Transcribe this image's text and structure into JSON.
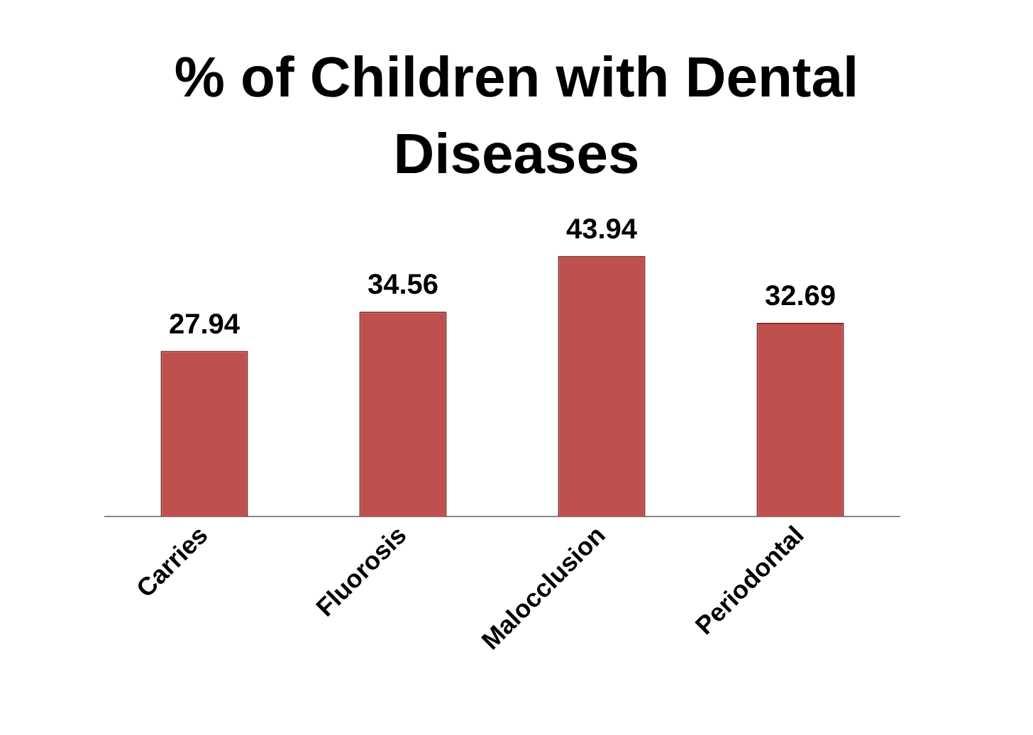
{
  "chart_data": {
    "type": "bar",
    "title": "% of Children with Dental Diseases",
    "categories": [
      "Carries",
      "Fluorosis",
      "Malocclusion",
      "Periodontal"
    ],
    "values": [
      27.94,
      34.56,
      43.94,
      32.69
    ],
    "color": "#c0504d",
    "data_labels": true,
    "legend": false,
    "grid": false,
    "tick_labels": "x"
  }
}
